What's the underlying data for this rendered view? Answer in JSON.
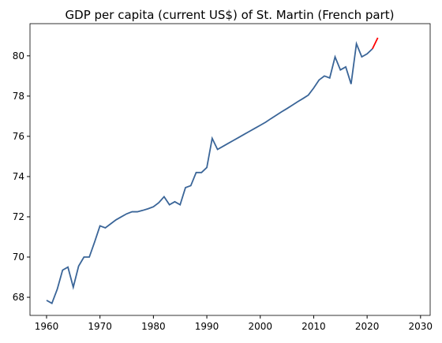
{
  "chart_data": {
    "type": "line",
    "title": "GDP per capita (current US$) of St. Martin (French part)",
    "x": [
      1960,
      1961,
      1962,
      1963,
      1964,
      1965,
      1966,
      1967,
      1968,
      1969,
      1970,
      1971,
      1972,
      1973,
      1974,
      1975,
      1976,
      1977,
      1978,
      1979,
      1980,
      1981,
      1982,
      1983,
      1984,
      1985,
      1986,
      1987,
      1988,
      1989,
      1990,
      1991,
      1992,
      1993,
      1994,
      1995,
      1996,
      1997,
      1998,
      1999,
      2000,
      2001,
      2002,
      2003,
      2004,
      2005,
      2006,
      2007,
      2008,
      2009,
      2010,
      2011,
      2012,
      2013,
      2014,
      2015,
      2016,
      2017,
      2018,
      2019,
      2020,
      2021,
      2022
    ],
    "series": [
      {
        "color": "#3a6598",
        "values": [
          67.85,
          67.7,
          68.4,
          69.35,
          69.5,
          68.5,
          69.55,
          70.0,
          70.0,
          70.75,
          71.55,
          71.45,
          71.65,
          71.85,
          72.0,
          72.15,
          72.25,
          72.25,
          72.32,
          72.4,
          72.5,
          72.7,
          73.0,
          72.6,
          72.75,
          72.6,
          73.45,
          73.55,
          74.2,
          74.2,
          74.45,
          75.9,
          75.35,
          75.5,
          75.65,
          75.8,
          75.95,
          76.1,
          76.25,
          76.4,
          76.55,
          76.7,
          76.88,
          77.05,
          77.22,
          77.38,
          77.55,
          77.72,
          77.88,
          78.05,
          78.4,
          78.8,
          79.0,
          78.9,
          79.95,
          79.3,
          79.45,
          78.6,
          80.6,
          79.95,
          80.1,
          80.35,
          null
        ]
      },
      {
        "color": "#ff0000",
        "values": [
          null,
          null,
          null,
          null,
          null,
          null,
          null,
          null,
          null,
          null,
          null,
          null,
          null,
          null,
          null,
          null,
          null,
          null,
          null,
          null,
          null,
          null,
          null,
          null,
          null,
          null,
          null,
          null,
          null,
          null,
          null,
          null,
          null,
          null,
          null,
          null,
          null,
          null,
          null,
          null,
          null,
          null,
          null,
          null,
          null,
          null,
          null,
          null,
          null,
          null,
          null,
          null,
          null,
          null,
          null,
          null,
          null,
          null,
          null,
          null,
          null,
          80.35,
          80.9
        ]
      }
    ],
    "xlim": [
      1956.9,
      2031.8
    ],
    "ylim": [
      67.1,
      81.6
    ],
    "xticks": [
      1960,
      1970,
      1980,
      1990,
      2000,
      2010,
      2020,
      2030
    ],
    "yticks": [
      68,
      70,
      72,
      74,
      76,
      78,
      80
    ]
  }
}
